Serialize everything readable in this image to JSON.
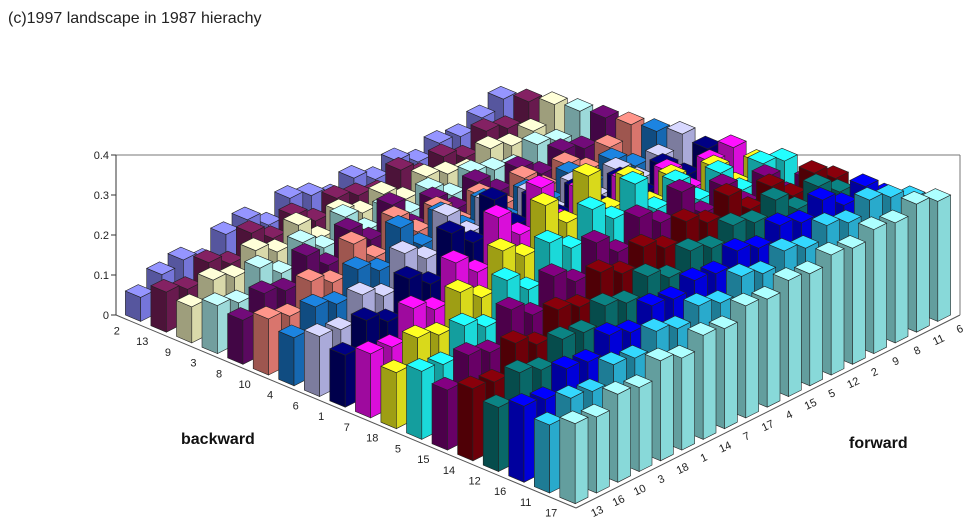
{
  "chart_data": {
    "type": "bar3d",
    "title": "(c)1997 landscape in 1987 hierachy",
    "xlabel": "backward",
    "ylabel": "forward",
    "zlim": [
      0,
      0.4
    ],
    "z_ticks": [
      "0",
      "0.1",
      "0.2",
      "0.3",
      "0.4"
    ],
    "backward_categories": [
      "2",
      "13",
      "9",
      "3",
      "8",
      "10",
      "4",
      "6",
      "1",
      "7",
      "18",
      "5",
      "15",
      "14",
      "12",
      "16",
      "11",
      "17"
    ],
    "forward_categories": [
      "13",
      "16",
      "10",
      "3",
      "18",
      "1",
      "14",
      "7",
      "17",
      "4",
      "15",
      "5",
      "12",
      "2",
      "9",
      "8",
      "11",
      "6"
    ],
    "series_colors": [
      "#8a8aff",
      "#7a1f5c",
      "#ffffc8",
      "#b8ffff",
      "#6a0a70",
      "#ff8a80",
      "#1a7ad0",
      "#c8c8ff",
      "#00007a",
      "#ff10ff",
      "#ffff20",
      "#20ffff",
      "#7a0078",
      "#80000a",
      "#0a7a7a",
      "#0000ff",
      "#30c8f0",
      "#a0ffff"
    ],
    "values": [
      [
        0.06,
        0.09,
        0.1,
        0.07,
        0.11,
        0.12,
        0.08,
        0.12,
        0.1,
        0.07,
        0.09,
        0.06,
        0.08,
        0.05,
        0.07,
        0.06,
        0.08,
        0.1
      ],
      [
        0.1,
        0.08,
        0.12,
        0.09,
        0.14,
        0.1,
        0.13,
        0.09,
        0.12,
        0.1,
        0.08,
        0.11,
        0.07,
        0.09,
        0.06,
        0.1,
        0.08,
        0.12
      ],
      [
        0.09,
        0.13,
        0.11,
        0.15,
        0.12,
        0.16,
        0.1,
        0.14,
        0.11,
        0.13,
        0.09,
        0.12,
        0.1,
        0.08,
        0.11,
        0.09,
        0.1,
        0.14
      ],
      [
        0.12,
        0.1,
        0.16,
        0.12,
        0.17,
        0.13,
        0.18,
        0.12,
        0.15,
        0.11,
        0.14,
        0.1,
        0.13,
        0.11,
        0.09,
        0.12,
        0.1,
        0.15
      ],
      [
        0.11,
        0.15,
        0.13,
        0.19,
        0.14,
        0.2,
        0.15,
        0.21,
        0.13,
        0.17,
        0.12,
        0.16,
        0.11,
        0.14,
        0.1,
        0.13,
        0.11,
        0.16
      ],
      [
        0.14,
        0.12,
        0.18,
        0.15,
        0.22,
        0.16,
        0.23,
        0.17,
        0.2,
        0.14,
        0.18,
        0.13,
        0.17,
        0.12,
        0.15,
        0.11,
        0.14,
        0.17
      ],
      [
        0.12,
        0.17,
        0.15,
        0.21,
        0.18,
        0.26,
        0.19,
        0.24,
        0.18,
        0.22,
        0.15,
        0.19,
        0.14,
        0.18,
        0.13,
        0.16,
        0.12,
        0.18
      ],
      [
        0.15,
        0.14,
        0.2,
        0.17,
        0.25,
        0.21,
        0.29,
        0.22,
        0.27,
        0.19,
        0.24,
        0.17,
        0.21,
        0.15,
        0.19,
        0.14,
        0.17,
        0.2
      ],
      [
        0.13,
        0.19,
        0.16,
        0.24,
        0.2,
        0.3,
        0.25,
        0.33,
        0.24,
        0.28,
        0.21,
        0.25,
        0.18,
        0.22,
        0.16,
        0.2,
        0.15,
        0.19
      ],
      [
        0.16,
        0.15,
        0.22,
        0.19,
        0.28,
        0.23,
        0.34,
        0.27,
        0.36,
        0.25,
        0.3,
        0.22,
        0.27,
        0.19,
        0.24,
        0.17,
        0.21,
        0.22
      ],
      [
        0.14,
        0.2,
        0.18,
        0.26,
        0.22,
        0.31,
        0.27,
        0.37,
        0.3,
        0.39,
        0.28,
        0.33,
        0.24,
        0.28,
        0.2,
        0.25,
        0.18,
        0.21
      ],
      [
        0.17,
        0.16,
        0.23,
        0.2,
        0.29,
        0.24,
        0.33,
        0.29,
        0.36,
        0.31,
        0.37,
        0.28,
        0.32,
        0.25,
        0.29,
        0.22,
        0.26,
        0.24
      ],
      [
        0.15,
        0.21,
        0.19,
        0.27,
        0.23,
        0.3,
        0.26,
        0.33,
        0.28,
        0.34,
        0.3,
        0.35,
        0.27,
        0.31,
        0.24,
        0.28,
        0.21,
        0.22
      ],
      [
        0.18,
        0.17,
        0.24,
        0.21,
        0.27,
        0.25,
        0.31,
        0.28,
        0.32,
        0.29,
        0.33,
        0.3,
        0.34,
        0.28,
        0.31,
        0.26,
        0.29,
        0.25
      ],
      [
        0.16,
        0.22,
        0.2,
        0.25,
        0.24,
        0.28,
        0.26,
        0.3,
        0.27,
        0.31,
        0.29,
        0.32,
        0.3,
        0.33,
        0.28,
        0.31,
        0.27,
        0.23
      ],
      [
        0.19,
        0.18,
        0.23,
        0.22,
        0.26,
        0.24,
        0.28,
        0.27,
        0.29,
        0.28,
        0.31,
        0.29,
        0.32,
        0.3,
        0.33,
        0.29,
        0.31,
        0.26
      ],
      [
        0.17,
        0.21,
        0.2,
        0.24,
        0.23,
        0.27,
        0.25,
        0.28,
        0.26,
        0.3,
        0.28,
        0.31,
        0.29,
        0.32,
        0.3,
        0.33,
        0.31,
        0.28
      ],
      [
        0.2,
        0.19,
        0.22,
        0.21,
        0.25,
        0.23,
        0.26,
        0.25,
        0.28,
        0.27,
        0.29,
        0.28,
        0.3,
        0.29,
        0.31,
        0.3,
        0.32,
        0.3
      ]
    ]
  }
}
